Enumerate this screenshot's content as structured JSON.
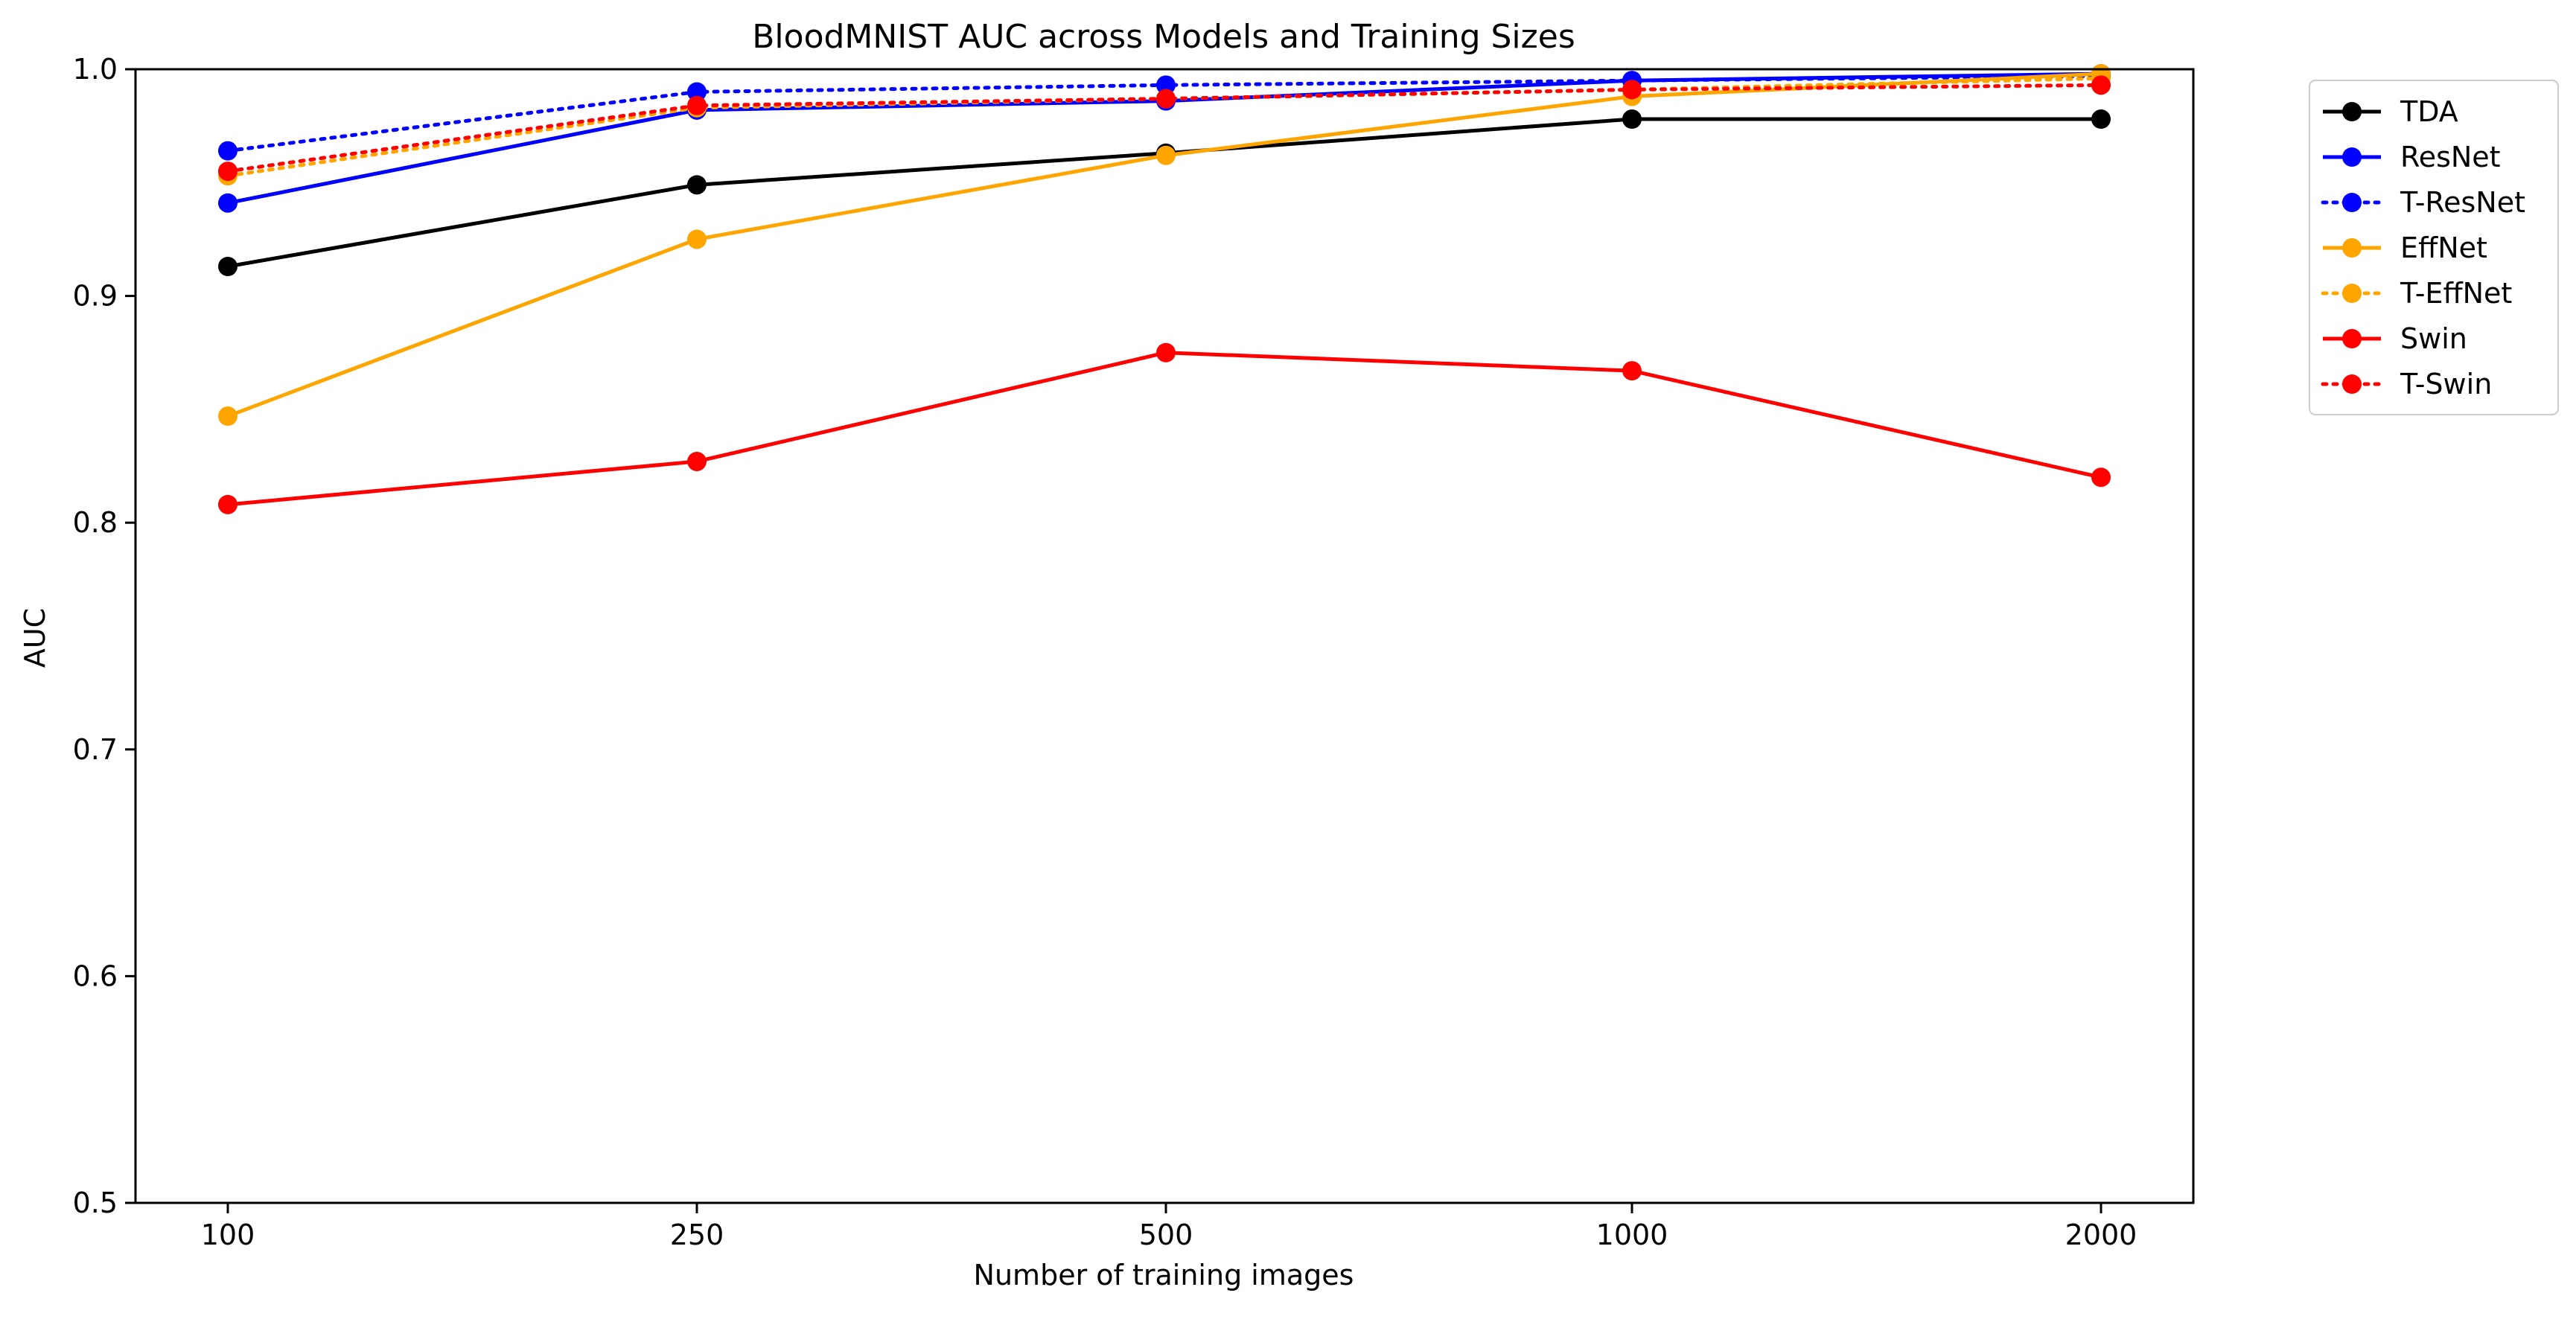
{
  "chart_data": {
    "type": "line",
    "title": "BloodMNIST AUC across Models and Training Sizes",
    "xlabel": "Number of training images",
    "ylabel": "AUC",
    "categories": [
      "100",
      "250",
      "500",
      "1000",
      "2000"
    ],
    "ylim": [
      0.5,
      1.0
    ],
    "yticks": [
      "0.5",
      "0.6",
      "0.7",
      "0.8",
      "0.9",
      "1.0"
    ],
    "grid": false,
    "legend_position": "outside-top-right",
    "series": [
      {
        "name": "TDA",
        "color": "#000000",
        "style": "solid",
        "marker": "circle",
        "values": [
          0.913,
          0.949,
          0.963,
          0.978,
          0.978
        ]
      },
      {
        "name": "ResNet",
        "color": "#0000ff",
        "style": "solid",
        "marker": "circle",
        "values": [
          0.941,
          0.982,
          0.986,
          0.995,
          0.998
        ]
      },
      {
        "name": "T-ResNet",
        "color": "#0000ff",
        "style": "dotted",
        "marker": "circle",
        "values": [
          0.964,
          0.99,
          0.993,
          0.995,
          0.997
        ]
      },
      {
        "name": "EffNet",
        "color": "#ffa500",
        "style": "solid",
        "marker": "circle",
        "values": [
          0.847,
          0.925,
          0.962,
          0.988,
          0.998
        ]
      },
      {
        "name": "T-EffNet",
        "color": "#ffa500",
        "style": "dotted",
        "marker": "circle",
        "values": [
          0.953,
          0.983,
          0.987,
          0.991,
          0.996
        ]
      },
      {
        "name": "Swin",
        "color": "#ff0000",
        "style": "solid",
        "marker": "circle",
        "values": [
          0.808,
          0.827,
          0.875,
          0.867,
          0.82
        ]
      },
      {
        "name": "T-Swin",
        "color": "#ff0000",
        "style": "dotted",
        "marker": "circle",
        "values": [
          0.955,
          0.984,
          0.987,
          0.991,
          0.993
        ]
      }
    ]
  }
}
